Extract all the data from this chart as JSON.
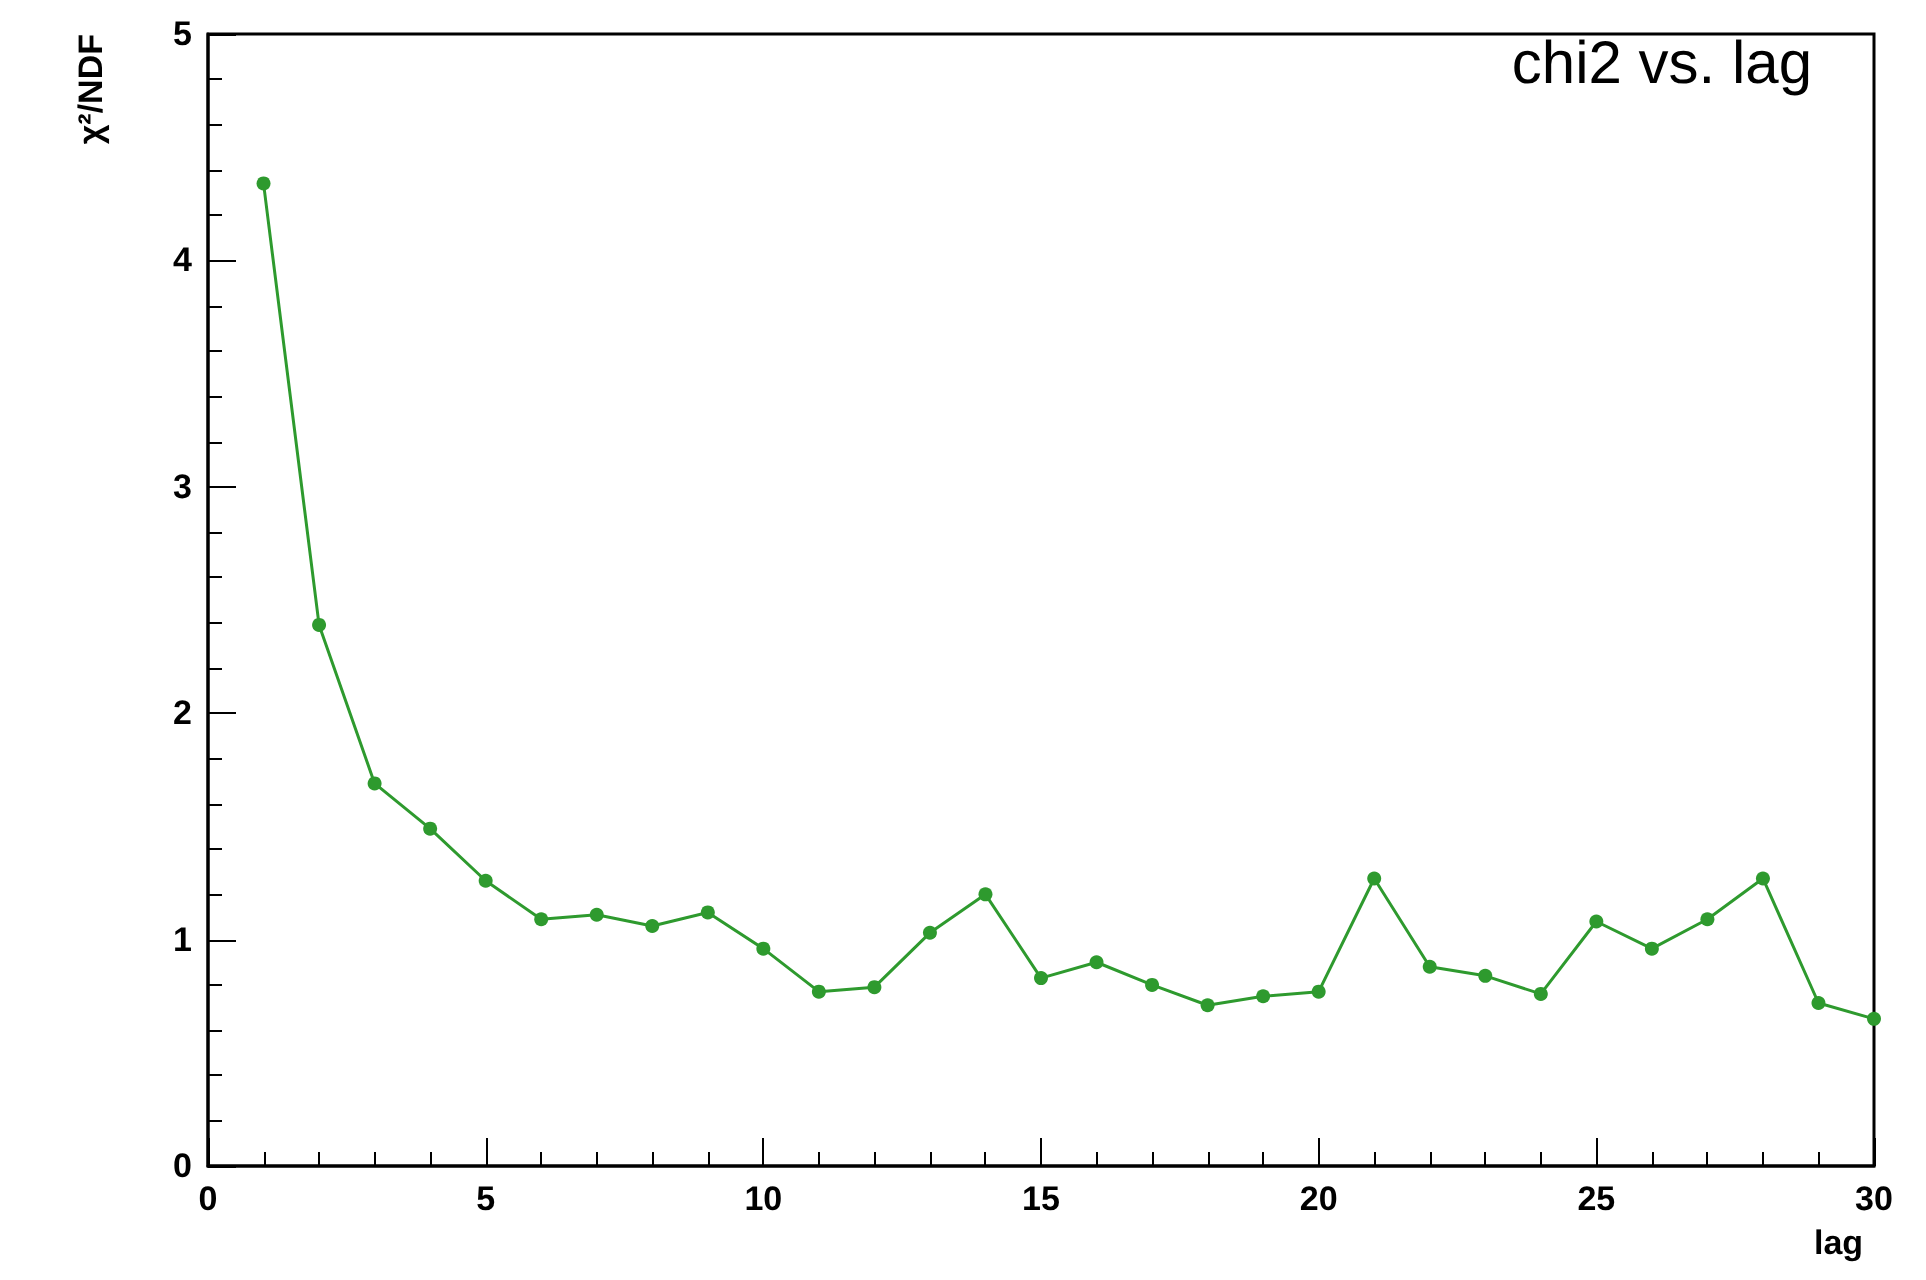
{
  "chart_data": {
    "type": "line",
    "title": "chi2 vs. lag",
    "xlabel": "lag",
    "ylabel": "χ²/NDF",
    "x": [
      1,
      2,
      3,
      4,
      5,
      6,
      7,
      8,
      9,
      10,
      11,
      12,
      13,
      14,
      15,
      16,
      17,
      18,
      19,
      20,
      21,
      22,
      23,
      24,
      25,
      26,
      27,
      28,
      29,
      30
    ],
    "series": [
      {
        "color": "#2e9a2e",
        "values": [
          4.34,
          2.39,
          1.69,
          1.49,
          1.26,
          1.09,
          1.11,
          1.06,
          1.12,
          0.96,
          0.77,
          0.79,
          1.03,
          1.2,
          0.83,
          0.9,
          0.8,
          0.71,
          0.75,
          0.77,
          1.27,
          0.88,
          0.84,
          0.76,
          1.08,
          0.96,
          1.09,
          1.27,
          0.72,
          0.65
        ]
      }
    ],
    "xlim": [
      0,
      30
    ],
    "xticks": [
      0,
      5,
      10,
      15,
      20,
      25,
      30
    ],
    "ylim": [
      0,
      5
    ],
    "yticks": [
      0,
      1,
      2,
      3,
      4,
      5
    ],
    "grid": false,
    "marker": "circle",
    "line_style": "solid"
  }
}
